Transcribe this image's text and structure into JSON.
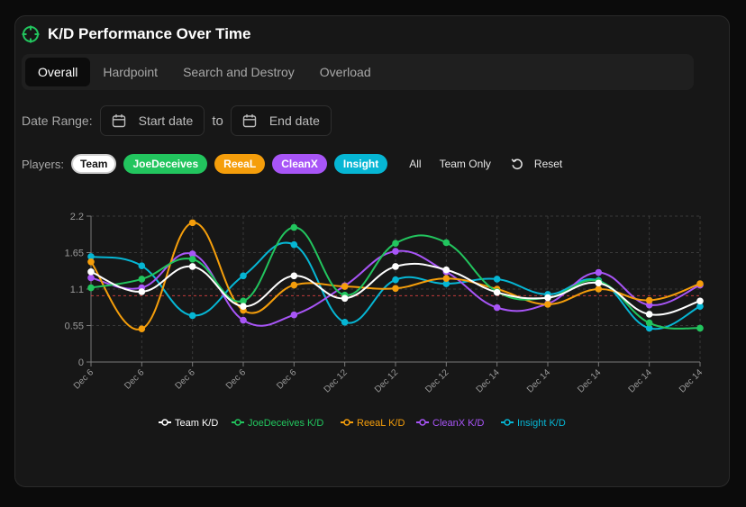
{
  "header": {
    "title": "K/D Performance Over Time"
  },
  "tabs": [
    {
      "label": "Overall",
      "active": true
    },
    {
      "label": "Hardpoint",
      "active": false
    },
    {
      "label": "Search and Destroy",
      "active": false
    },
    {
      "label": "Overload",
      "active": false
    }
  ],
  "date_range": {
    "label": "Date Range:",
    "start_placeholder": "Start date",
    "separator": "to",
    "end_placeholder": "End date"
  },
  "players": {
    "label": "Players:",
    "chips": [
      {
        "name": "Team",
        "bg": "#ffffff",
        "fg": "#111111"
      },
      {
        "name": "JoeDeceives",
        "bg": "#22c55e",
        "fg": "#ffffff"
      },
      {
        "name": "ReeaL",
        "bg": "#f59e0b",
        "fg": "#ffffff"
      },
      {
        "name": "CleanX",
        "bg": "#a855f7",
        "fg": "#ffffff"
      },
      {
        "name": "Insight",
        "bg": "#06b6d4",
        "fg": "#ffffff"
      }
    ],
    "all_label": "All",
    "team_only_label": "Team Only",
    "reset_label": "Reset"
  },
  "chart_data": {
    "type": "line",
    "title": "K/D Performance Over Time",
    "categories": [
      "Dec 6",
      "Dec 6",
      "Dec 6",
      "Dec 6",
      "Dec 6",
      "Dec 12",
      "Dec 12",
      "Dec 12",
      "Dec 14",
      "Dec 14",
      "Dec 14",
      "Dec 14",
      "Dec 14"
    ],
    "yticks": [
      0,
      0.55,
      1.1,
      1.65,
      2.2
    ],
    "ylim": [
      0,
      2.2
    ],
    "reference_line": 1.0,
    "xlabel": "",
    "ylabel": "",
    "series": [
      {
        "name": "Team K/D",
        "color": "#ffffff",
        "values": [
          1.36,
          1.06,
          1.44,
          0.84,
          1.3,
          0.96,
          1.44,
          1.39,
          1.05,
          0.97,
          1.19,
          0.72,
          0.92
        ]
      },
      {
        "name": "JoeDeceives K/D",
        "color": "#22c55e",
        "values": [
          1.12,
          1.25,
          1.55,
          0.92,
          2.03,
          1.01,
          1.79,
          1.8,
          1.06,
          0.97,
          1.22,
          0.59,
          0.51
        ]
      },
      {
        "name": "ReeaL K/D",
        "color": "#f59e0b",
        "values": [
          1.51,
          0.5,
          2.1,
          0.78,
          1.16,
          1.14,
          1.11,
          1.26,
          1.1,
          0.87,
          1.1,
          0.93,
          1.18
        ]
      },
      {
        "name": "CleanX K/D",
        "color": "#a855f7",
        "values": [
          1.27,
          1.12,
          1.63,
          0.63,
          0.71,
          1.15,
          1.67,
          1.36,
          0.82,
          0.88,
          1.35,
          0.86,
          1.16
        ]
      },
      {
        "name": "Insight K/D",
        "color": "#06b6d4",
        "values": [
          1.59,
          1.45,
          0.7,
          1.3,
          1.77,
          0.6,
          1.24,
          1.18,
          1.25,
          1.02,
          1.23,
          0.51,
          0.84
        ]
      }
    ]
  }
}
